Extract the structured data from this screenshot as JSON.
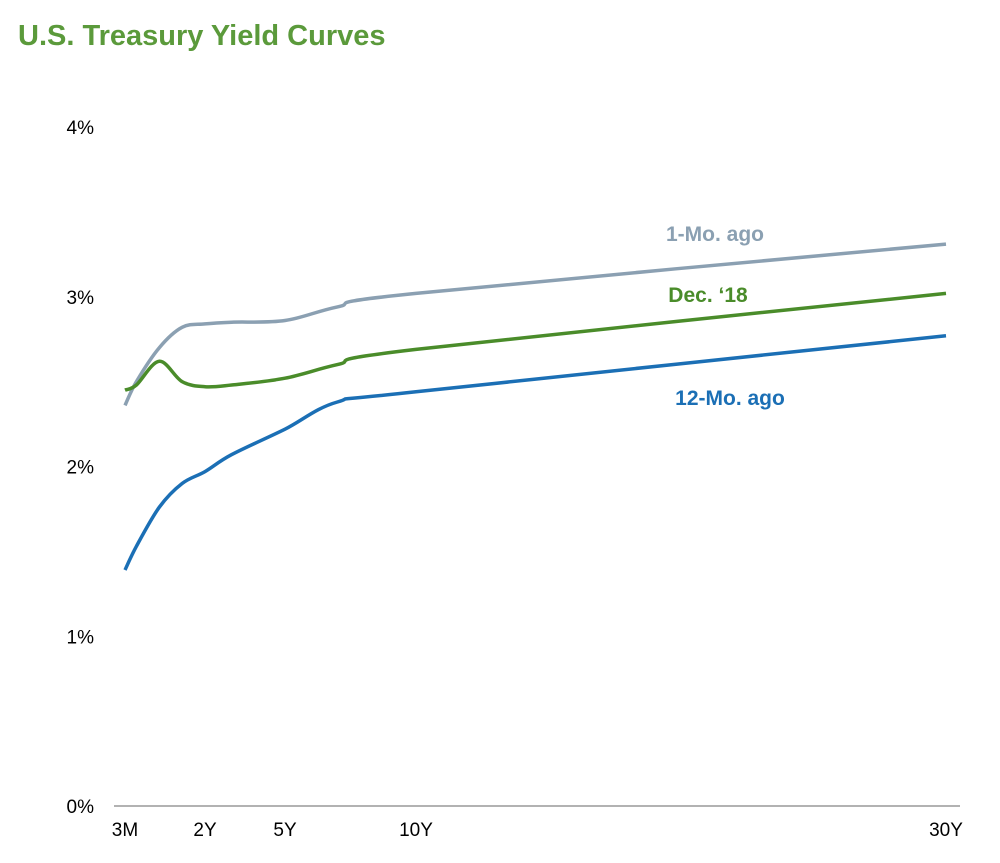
{
  "chart_data": {
    "type": "line",
    "title": "U.S. Treasury Yield Curves",
    "xlabel": "",
    "ylabel": "",
    "x_tick_labels": [
      "3M",
      "2Y",
      "5Y",
      "10Y",
      "30Y"
    ],
    "x_tick_years": [
      0.25,
      2,
      5,
      10,
      30
    ],
    "y_tick_labels": [
      "0%",
      "1%",
      "2%",
      "3%",
      "4%"
    ],
    "ylim": [
      0,
      4
    ],
    "xlim": [
      0.25,
      30
    ],
    "grid": false,
    "series": [
      {
        "name": "1-Mo. ago",
        "color": "#8ba0b2",
        "x": [
          0.25,
          0.5,
          1,
          1.5,
          2,
          3,
          5,
          7,
          10,
          30
        ],
        "values": [
          2.36,
          2.5,
          2.7,
          2.82,
          2.84,
          2.85,
          2.86,
          2.94,
          3.02,
          3.31
        ]
      },
      {
        "name": "Dec. ‘18",
        "color": "#4a8c2a",
        "x": [
          0.25,
          0.5,
          1,
          1.5,
          2,
          3,
          5,
          7,
          10,
          30
        ],
        "values": [
          2.45,
          2.48,
          2.62,
          2.5,
          2.47,
          2.48,
          2.52,
          2.6,
          2.69,
          3.02
        ]
      },
      {
        "name": "12-Mo. ago",
        "color": "#1b6fb5",
        "x": [
          0.25,
          0.5,
          1,
          1.5,
          2,
          3,
          5,
          7,
          10,
          30
        ],
        "values": [
          1.39,
          1.53,
          1.76,
          1.9,
          1.97,
          2.07,
          2.22,
          2.38,
          2.44,
          2.77
        ]
      }
    ]
  }
}
